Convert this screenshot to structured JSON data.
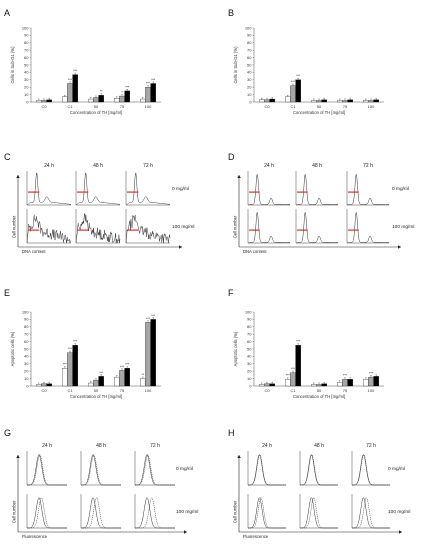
{
  "panels": {
    "A": "A",
    "B": "B",
    "C": "C",
    "D": "D",
    "E": "E",
    "F": "F",
    "G": "G",
    "H": "H"
  },
  "bar_x_title": "Concentration of TH [mg/ml]",
  "bar_ylabel_sub": "Cells in Sub-G1 (%)",
  "bar_ylabel_apo": "Apoptotic cells (%)",
  "hist_labels": {
    "times": [
      "24 h",
      "48 h",
      "72 h"
    ],
    "conc_top": "0 mg/ml",
    "conc_bottom": "100 mg/ml",
    "y_cell_number": "Cell number",
    "x_dna": "DNA content",
    "x_fluor": "Fluorescence"
  },
  "colors": {
    "s1": "#ffffff",
    "s2": "#a6a6a6",
    "s3": "#000000",
    "marker": "#e41a1c"
  },
  "chart_data": [
    {
      "id": "A",
      "type": "bar",
      "categories": [
        "C0",
        "C1",
        "50",
        "75",
        "100"
      ],
      "ylim": [
        0,
        100
      ],
      "yticks": [
        0,
        10,
        20,
        30,
        40,
        50,
        60,
        70,
        80,
        90,
        100
      ],
      "xlabel": "Concentration of TH [mg/ml]",
      "ylabel": "Cells in Sub-G1 (%)",
      "series": [
        {
          "values": [
            2,
            7,
            4,
            5,
            4
          ]
        },
        {
          "values": [
            2,
            25,
            6,
            8,
            20
          ]
        },
        {
          "values": [
            3,
            37,
            9,
            15,
            25
          ]
        }
      ],
      "annotations": [
        {
          "cat": 1,
          "s": 1,
          "text": "***"
        },
        {
          "cat": 1,
          "s": 2,
          "text": "***"
        },
        {
          "cat": 2,
          "s": 2,
          "text": "**"
        },
        {
          "cat": 3,
          "s": 1,
          "text": "*"
        },
        {
          "cat": 3,
          "s": 2,
          "text": "***"
        },
        {
          "cat": 4,
          "s": 1,
          "text": "***"
        },
        {
          "cat": 4,
          "s": 2,
          "text": "***"
        }
      ]
    },
    {
      "id": "B",
      "type": "bar",
      "categories": [
        "C0",
        "C1",
        "50",
        "75",
        "100"
      ],
      "ylim": [
        0,
        100
      ],
      "yticks": [
        0,
        10,
        20,
        30,
        40,
        50,
        60,
        70,
        80,
        90,
        100
      ],
      "xlabel": "Concentration of TH [mg/ml]",
      "ylabel": "Cells in Sub-G1 (%)",
      "series": [
        {
          "values": [
            3,
            7,
            2,
            2,
            2
          ]
        },
        {
          "values": [
            3,
            22,
            2,
            2,
            2
          ]
        },
        {
          "values": [
            4,
            30,
            3,
            3,
            3
          ]
        }
      ],
      "annotations": [
        {
          "cat": 1,
          "s": 1,
          "text": "***"
        },
        {
          "cat": 1,
          "s": 2,
          "text": "***"
        }
      ]
    },
    {
      "id": "E",
      "type": "bar",
      "categories": [
        "C0",
        "C1",
        "50",
        "75",
        "100"
      ],
      "ylim": [
        0,
        100
      ],
      "yticks": [
        0,
        10,
        20,
        30,
        40,
        50,
        60,
        70,
        80,
        90,
        100
      ],
      "xlabel": "Concentration of TH [mg/ml]",
      "ylabel": "Apoptotic cells (%)",
      "series": [
        {
          "values": [
            2,
            24,
            4,
            12,
            10
          ]
        },
        {
          "values": [
            3,
            45,
            8,
            21,
            86
          ]
        },
        {
          "values": [
            3,
            55,
            13,
            24,
            90
          ]
        }
      ],
      "annotations": [
        {
          "cat": 1,
          "s": 0,
          "text": "***"
        },
        {
          "cat": 1,
          "s": 1,
          "text": "***"
        },
        {
          "cat": 1,
          "s": 2,
          "text": "***"
        },
        {
          "cat": 2,
          "s": 2,
          "text": "***"
        },
        {
          "cat": 3,
          "s": 1,
          "text": "***"
        },
        {
          "cat": 3,
          "s": 2,
          "text": "***"
        },
        {
          "cat": 4,
          "s": 0,
          "text": "**"
        },
        {
          "cat": 4,
          "s": 1,
          "text": "***"
        },
        {
          "cat": 4,
          "s": 2,
          "text": "***"
        }
      ]
    },
    {
      "id": "F",
      "type": "bar",
      "categories": [
        "C0",
        "C1",
        "50",
        "75",
        "100"
      ],
      "ylim": [
        0,
        100
      ],
      "yticks": [
        0,
        10,
        20,
        30,
        40,
        50,
        60,
        70,
        80,
        90,
        100
      ],
      "xlabel": "Concentration of TH [mg/ml]",
      "ylabel": "Apoptotic cells (%)",
      "series": [
        {
          "values": [
            2,
            9,
            2,
            5,
            9
          ]
        },
        {
          "values": [
            3,
            18,
            2,
            9,
            12
          ]
        },
        {
          "values": [
            3,
            55,
            3,
            9,
            13
          ]
        }
      ],
      "annotations": [
        {
          "cat": 1,
          "s": 0,
          "text": "***"
        },
        {
          "cat": 1,
          "s": 1,
          "text": "***"
        },
        {
          "cat": 1,
          "s": 2,
          "text": "***"
        },
        {
          "cat": 3,
          "s": 1,
          "text": "***"
        },
        {
          "cat": 4,
          "s": 1,
          "text": "***"
        }
      ]
    }
  ]
}
